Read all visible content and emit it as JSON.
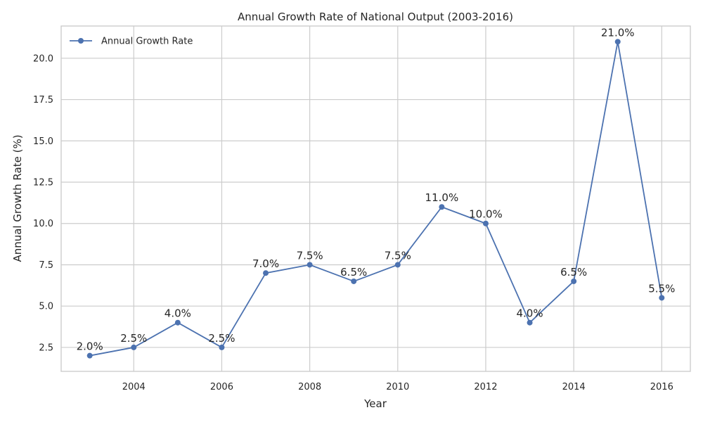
{
  "chart_data": {
    "type": "line",
    "title": "Annual Growth Rate of National Output (2003-2016)",
    "xlabel": "Year",
    "ylabel": "Annual Growth Rate (%)",
    "x": [
      2003,
      2004,
      2005,
      2006,
      2007,
      2008,
      2009,
      2010,
      2011,
      2012,
      2013,
      2014,
      2015,
      2016
    ],
    "series": [
      {
        "name": "Annual Growth Rate",
        "values": [
          2.0,
          2.5,
          4.0,
          2.5,
          7.0,
          7.5,
          6.5,
          7.5,
          11.0,
          10.0,
          4.0,
          6.5,
          21.0,
          5.5
        ],
        "labels": [
          "2.0%",
          "2.5%",
          "4.0%",
          "2.5%",
          "7.0%",
          "7.5%",
          "6.5%",
          "7.5%",
          "11.0%",
          "10.0%",
          "4.0%",
          "6.5%",
          "21.0%",
          "5.5%"
        ],
        "color": "#4c72b0"
      }
    ],
    "xlim": [
      2002.35,
      2016.65
    ],
    "ylim": [
      1.05,
      21.95
    ],
    "xticks": [
      2004,
      2006,
      2008,
      2010,
      2012,
      2014,
      2016
    ],
    "xtick_labels": [
      "2004",
      "2006",
      "2008",
      "2010",
      "2012",
      "2014",
      "2016"
    ],
    "yticks": [
      2.5,
      5.0,
      7.5,
      10.0,
      12.5,
      15.0,
      17.5,
      20.0
    ],
    "ytick_labels": [
      "2.5",
      "5.0",
      "7.5",
      "10.0",
      "12.5",
      "15.0",
      "17.5",
      "20.0"
    ],
    "grid": true,
    "legend": "top-left"
  }
}
